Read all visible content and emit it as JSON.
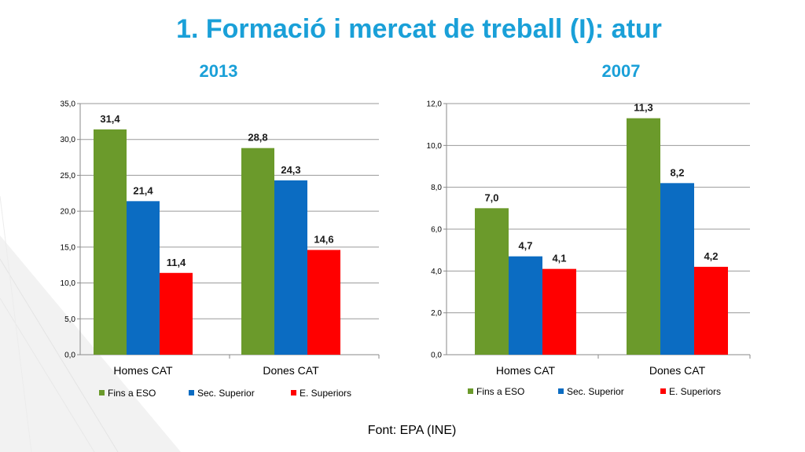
{
  "slide": {
    "title": "1. Formació i mercat de treball (I): atur",
    "source": "Font: EPA (INE)"
  },
  "colors": {
    "title": "#1aa0d8",
    "fins_a_eso": "#6b9a2b",
    "sec_superior": "#0b6cc2",
    "e_superiors": "#ff0000"
  },
  "chart_data": [
    {
      "type": "bar",
      "title": "2013",
      "categories": [
        "Homes CAT",
        "Dones CAT"
      ],
      "series": [
        {
          "name": "Fins a ESO",
          "values": [
            31.4,
            28.8
          ],
          "labels": [
            "31,4",
            "28,8"
          ]
        },
        {
          "name": "Sec. Superior",
          "values": [
            21.4,
            24.3
          ],
          "labels": [
            "21,4",
            "24,3"
          ]
        },
        {
          "name": "E. Superiors",
          "values": [
            11.4,
            14.6
          ],
          "labels": [
            "11,4",
            "14,6"
          ]
        }
      ],
      "ylim": [
        0,
        35
      ],
      "yticks": [
        "0,0",
        "5,0",
        "10,0",
        "15,0",
        "20,0",
        "25,0",
        "30,0",
        "35,0"
      ],
      "grid": true,
      "legend": "bottom"
    },
    {
      "type": "bar",
      "title": "2007",
      "categories": [
        "Homes CAT",
        "Dones CAT"
      ],
      "series": [
        {
          "name": "Fins a ESO",
          "values": [
            7.0,
            11.3
          ],
          "labels": [
            "7,0",
            "11,3"
          ]
        },
        {
          "name": "Sec. Superior",
          "values": [
            4.7,
            8.2
          ],
          "labels": [
            "4,7",
            "8,2"
          ]
        },
        {
          "name": "E. Superiors",
          "values": [
            4.1,
            4.2
          ],
          "labels": [
            "4,1",
            "4,2"
          ]
        }
      ],
      "ylim": [
        0,
        12
      ],
      "yticks": [
        "0,0",
        "2,0",
        "4,0",
        "6,0",
        "8,0",
        "10,0",
        "12,0"
      ],
      "grid": true,
      "legend": "bottom"
    }
  ]
}
